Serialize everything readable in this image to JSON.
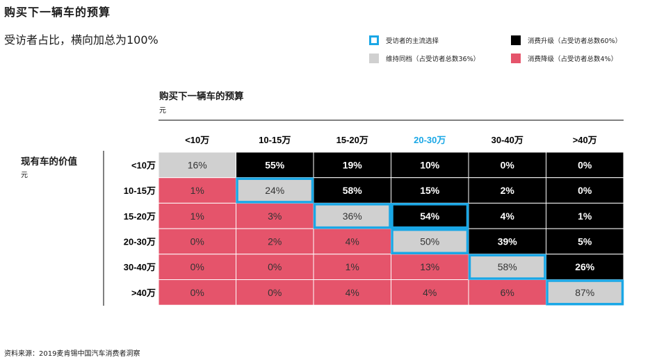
{
  "header": {
    "title": "购买下一辆车的预算",
    "subtitle": "受访者占比，横向加总为100%"
  },
  "legend": {
    "mainstream": "受访者的主流选择",
    "upgrade": "消费升级（占受访者总数60%）",
    "same": "维持同档（占受访者总数36%）",
    "downgrade": "消费降级（占受访者总数4%）"
  },
  "colors": {
    "upgrade": "#000000",
    "same": "#d0d0d0",
    "downgrade": "#e5546b",
    "mainstream_border": "#1aa7e6",
    "highlight_text": "#1aa7e6"
  },
  "footnote": "资料来源：2019麦肯锡中国汽车消费者洞察",
  "chart_data": {
    "type": "heatmap",
    "title": "购买下一辆车的预算",
    "x_unit": "元",
    "ylabel": "现有车的价值",
    "y_unit": "元",
    "columns": [
      "<10万",
      "10-15万",
      "15-20万",
      "20-30万",
      "30-40万",
      ">40万"
    ],
    "rows": [
      "<10万",
      "10-15万",
      "15-20万",
      "20-30万",
      "30-40万",
      ">40万"
    ],
    "highlight_column": "20-30万",
    "values": [
      [
        16,
        55,
        19,
        10,
        0,
        0
      ],
      [
        1,
        24,
        58,
        15,
        2,
        0
      ],
      [
        1,
        3,
        36,
        54,
        4,
        1
      ],
      [
        0,
        2,
        4,
        50,
        39,
        5
      ],
      [
        0,
        0,
        1,
        13,
        58,
        26
      ],
      [
        0,
        0,
        4,
        4,
        6,
        87
      ]
    ],
    "mainstream_cells": [
      [
        1,
        1
      ],
      [
        2,
        2
      ],
      [
        2,
        3
      ],
      [
        3,
        3
      ],
      [
        4,
        4
      ],
      [
        5,
        5
      ]
    ],
    "value_suffix": "%"
  }
}
